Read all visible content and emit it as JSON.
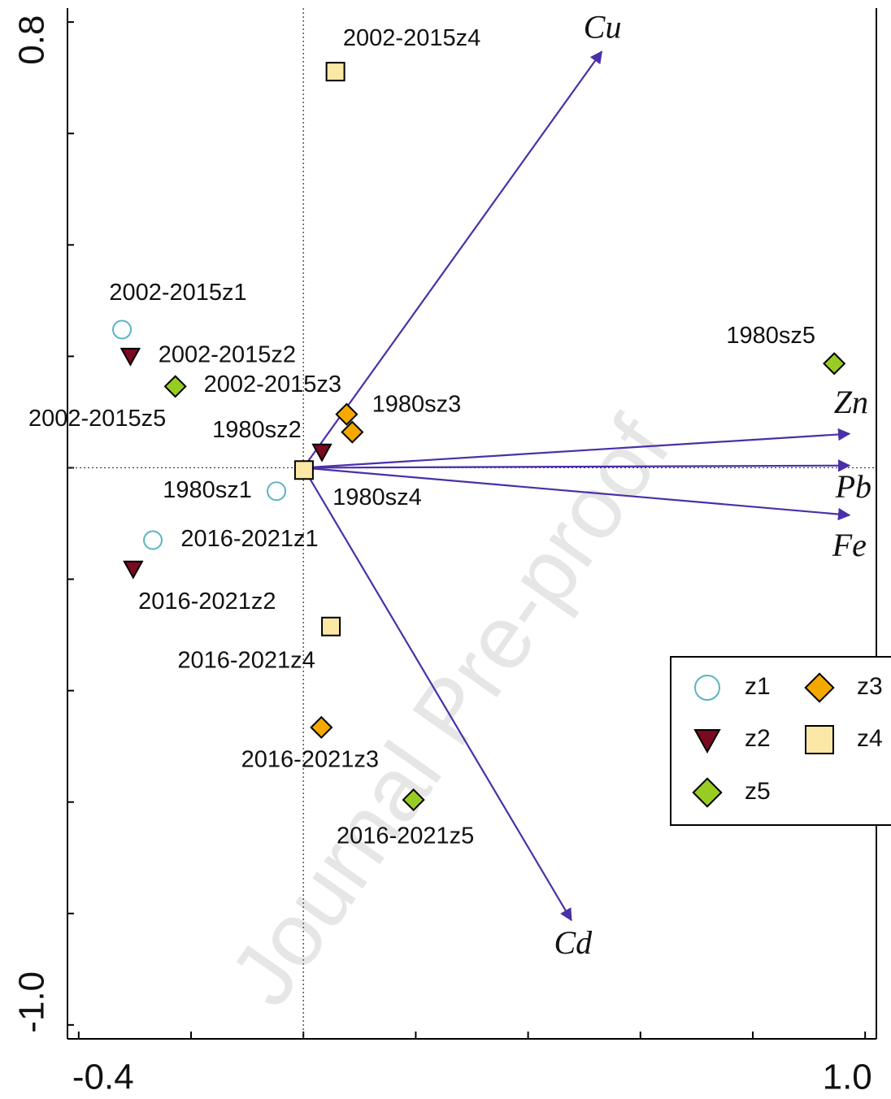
{
  "chart_data": {
    "type": "scatter",
    "xlim": [
      -0.42,
      1.02
    ],
    "ylim": [
      -1.025,
      0.825
    ],
    "xticks": [
      -0.4,
      -0.2,
      0,
      0.2,
      0.4,
      0.6,
      0.8,
      {
        "value": 1,
        "label": "1.0"
      }
    ],
    "yticks": [
      {
        "value": -1,
        "label": "-1.0"
      },
      -0.8,
      -0.6,
      -0.4,
      -0.2,
      0,
      0.2,
      0.4,
      0.6,
      0.8
    ],
    "series": [
      {
        "name": "z1",
        "color": "#5ab4c5",
        "marker": "circle",
        "labels": [
          "2002-2015z1",
          "1980sz1",
          "2016-2021z1"
        ],
        "x": [
          -0.323,
          -0.048,
          -0.268
        ],
        "y": [
          0.248,
          -0.042,
          -0.13
        ]
      },
      {
        "name": "z2",
        "color": "#7a0a1f",
        "marker": "triangle-down",
        "labels": [
          "2002-2015z2",
          "1980sz2",
          "2016-2021z2"
        ],
        "x": [
          -0.308,
          0.033,
          -0.303
        ],
        "y": [
          0.201,
          0.029,
          -0.181
        ]
      },
      {
        "name": "z3",
        "color": "#f5a800",
        "marker": "diamond",
        "labels": [
          "1980sz3",
          "2002-2015z3",
          "2016-2021z3"
        ],
        "x": [
          0.077,
          0.087,
          0.032
        ],
        "y": [
          0.096,
          0.064,
          -0.466
        ]
      },
      {
        "name": "z4",
        "color": "#fbe8a6",
        "marker": "square",
        "labels": [
          "2002-2015z4",
          "1980sz4",
          "2016-2021z4"
        ],
        "x": [
          0.057,
          0.001,
          0.049
        ],
        "y": [
          0.711,
          -0.004,
          -0.285
        ]
      },
      {
        "name": "z5",
        "color": "#99cc22",
        "marker": "diamond",
        "labels": [
          "2002-2015z5",
          "1980sz5",
          "2016-2021z5"
        ],
        "x": [
          -0.228,
          0.945,
          0.196
        ],
        "y": [
          0.146,
          0.187,
          -0.596
        ]
      }
    ],
    "vectors": {
      "color": "#4b2fa8",
      "names": [
        "Cu",
        "Zn",
        "Pb",
        "Fe",
        "Cd"
      ],
      "x": [
        0.531,
        0.972,
        0.972,
        0.972,
        0.477
      ],
      "y": [
        0.747,
        0.061,
        0.004,
        -0.085,
        -0.812
      ]
    },
    "watermark": "Journal Pre-proof"
  }
}
